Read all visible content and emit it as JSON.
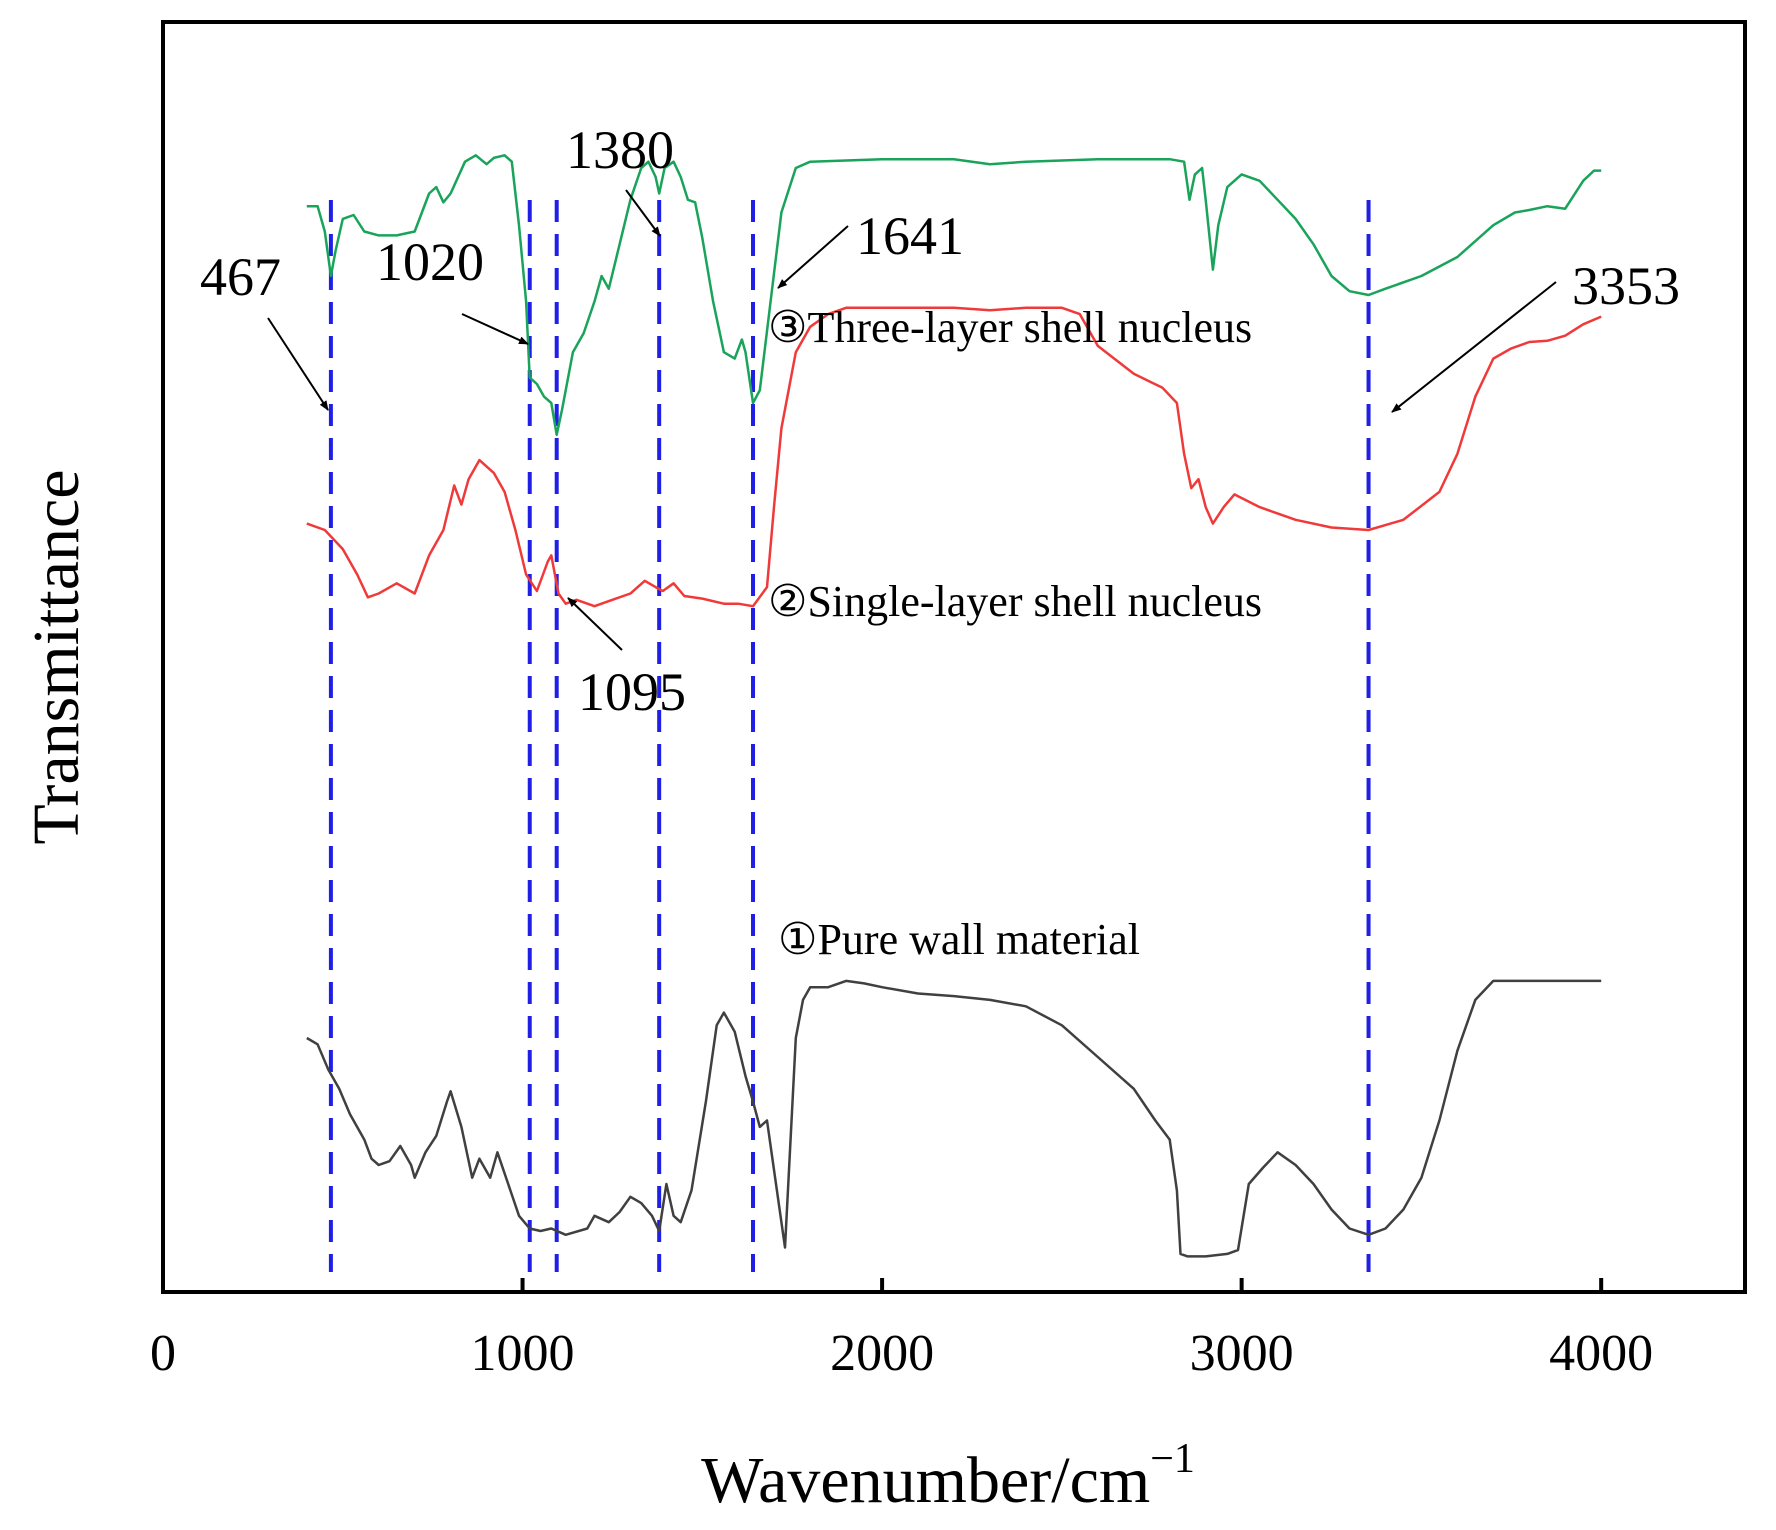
{
  "chart_data": {
    "type": "line",
    "xlabel": "Wavenumber/cm",
    "xlabel_superscript": "−1",
    "ylabel": "Transmittance",
    "xlim": [
      0,
      4400
    ],
    "ylim": [
      0,
      100
    ],
    "x_ticks": [
      0,
      1000,
      2000,
      3000,
      4000
    ],
    "x_tick_labels": [
      "0",
      "1000",
      "2000",
      "3000",
      "4000"
    ],
    "grid": false,
    "y_ticks_shown": false,
    "series": [
      {
        "name": "③Three-layer shell nucleus",
        "color": "#1aa35a",
        "points": [
          [
            400,
            85.5
          ],
          [
            430,
            85.5
          ],
          [
            450,
            83.5
          ],
          [
            467,
            80
          ],
          [
            480,
            82
          ],
          [
            500,
            84.5
          ],
          [
            530,
            84.8
          ],
          [
            560,
            83.5
          ],
          [
            600,
            83.2
          ],
          [
            650,
            83.2
          ],
          [
            700,
            83.5
          ],
          [
            740,
            86.5
          ],
          [
            760,
            87
          ],
          [
            780,
            85.8
          ],
          [
            800,
            86.5
          ],
          [
            840,
            89
          ],
          [
            870,
            89.5
          ],
          [
            900,
            88.8
          ],
          [
            920,
            89.3
          ],
          [
            950,
            89.5
          ],
          [
            970,
            89
          ],
          [
            990,
            84
          ],
          [
            1010,
            78
          ],
          [
            1020,
            72
          ],
          [
            1040,
            71.5
          ],
          [
            1060,
            70.5
          ],
          [
            1080,
            70
          ],
          [
            1095,
            67.5
          ],
          [
            1110,
            69.5
          ],
          [
            1140,
            74
          ],
          [
            1170,
            75.5
          ],
          [
            1200,
            78
          ],
          [
            1220,
            80
          ],
          [
            1240,
            79
          ],
          [
            1270,
            82.5
          ],
          [
            1300,
            86
          ],
          [
            1330,
            88.5
          ],
          [
            1350,
            89
          ],
          [
            1370,
            87.8
          ],
          [
            1380,
            86.5
          ],
          [
            1395,
            88.5
          ],
          [
            1420,
            89
          ],
          [
            1440,
            87.8
          ],
          [
            1460,
            86
          ],
          [
            1480,
            85.8
          ],
          [
            1500,
            83
          ],
          [
            1530,
            78
          ],
          [
            1560,
            74
          ],
          [
            1590,
            73.5
          ],
          [
            1610,
            75
          ],
          [
            1620,
            74
          ],
          [
            1641,
            70
          ],
          [
            1660,
            71
          ],
          [
            1690,
            78
          ],
          [
            1720,
            85
          ],
          [
            1760,
            88.5
          ],
          [
            1800,
            89
          ],
          [
            2000,
            89.2
          ],
          [
            2200,
            89.2
          ],
          [
            2250,
            89
          ],
          [
            2300,
            88.8
          ],
          [
            2400,
            89
          ],
          [
            2600,
            89.2
          ],
          [
            2800,
            89.2
          ],
          [
            2840,
            89
          ],
          [
            2855,
            86
          ],
          [
            2870,
            88
          ],
          [
            2890,
            88.5
          ],
          [
            2900,
            86
          ],
          [
            2920,
            80.5
          ],
          [
            2935,
            84
          ],
          [
            2960,
            87
          ],
          [
            3000,
            88
          ],
          [
            3050,
            87.5
          ],
          [
            3100,
            86
          ],
          [
            3150,
            84.5
          ],
          [
            3200,
            82.5
          ],
          [
            3250,
            80
          ],
          [
            3300,
            78.8
          ],
          [
            3353,
            78.5
          ],
          [
            3400,
            79
          ],
          [
            3500,
            80
          ],
          [
            3600,
            81.5
          ],
          [
            3700,
            84
          ],
          [
            3760,
            85
          ],
          [
            3800,
            85.2
          ],
          [
            3850,
            85.5
          ],
          [
            3900,
            85.3
          ],
          [
            3950,
            87.5
          ],
          [
            3980,
            88.3
          ],
          [
            4000,
            88.3
          ]
        ]
      },
      {
        "name": "②Single-layer shell nucleus",
        "color": "#f03a3a",
        "points": [
          [
            400,
            60.5
          ],
          [
            450,
            60
          ],
          [
            500,
            58.5
          ],
          [
            540,
            56.5
          ],
          [
            570,
            54.7
          ],
          [
            600,
            55
          ],
          [
            650,
            55.8
          ],
          [
            700,
            55
          ],
          [
            740,
            58
          ],
          [
            780,
            60
          ],
          [
            810,
            63.5
          ],
          [
            830,
            62
          ],
          [
            850,
            64
          ],
          [
            880,
            65.5
          ],
          [
            920,
            64.5
          ],
          [
            950,
            63
          ],
          [
            980,
            60
          ],
          [
            1010,
            56.5
          ],
          [
            1040,
            55.2
          ],
          [
            1070,
            57.5
          ],
          [
            1080,
            58
          ],
          [
            1090,
            56.5
          ],
          [
            1100,
            55
          ],
          [
            1120,
            54.2
          ],
          [
            1150,
            54.5
          ],
          [
            1200,
            54
          ],
          [
            1250,
            54.5
          ],
          [
            1300,
            55
          ],
          [
            1340,
            56
          ],
          [
            1370,
            55.5
          ],
          [
            1390,
            55.2
          ],
          [
            1420,
            55.8
          ],
          [
            1450,
            54.8
          ],
          [
            1500,
            54.6
          ],
          [
            1560,
            54.2
          ],
          [
            1600,
            54.2
          ],
          [
            1641,
            54
          ],
          [
            1680,
            55.5
          ],
          [
            1700,
            62
          ],
          [
            1720,
            68
          ],
          [
            1760,
            74
          ],
          [
            1800,
            76
          ],
          [
            1850,
            77
          ],
          [
            1900,
            77.5
          ],
          [
            2000,
            77.5
          ],
          [
            2100,
            77.5
          ],
          [
            2200,
            77.5
          ],
          [
            2300,
            77.3
          ],
          [
            2400,
            77.5
          ],
          [
            2500,
            77.5
          ],
          [
            2550,
            77
          ],
          [
            2600,
            74.5
          ],
          [
            2700,
            72.3
          ],
          [
            2780,
            71.2
          ],
          [
            2820,
            70
          ],
          [
            2840,
            66
          ],
          [
            2860,
            63.3
          ],
          [
            2880,
            64
          ],
          [
            2900,
            61.8
          ],
          [
            2920,
            60.5
          ],
          [
            2950,
            61.8
          ],
          [
            2980,
            62.8
          ],
          [
            3050,
            61.8
          ],
          [
            3150,
            60.8
          ],
          [
            3250,
            60.2
          ],
          [
            3353,
            60
          ],
          [
            3450,
            60.8
          ],
          [
            3550,
            63
          ],
          [
            3600,
            66
          ],
          [
            3650,
            70.5
          ],
          [
            3700,
            73.5
          ],
          [
            3750,
            74.3
          ],
          [
            3800,
            74.8
          ],
          [
            3850,
            74.9
          ],
          [
            3900,
            75.3
          ],
          [
            3950,
            76.2
          ],
          [
            4000,
            76.8
          ]
        ]
      },
      {
        "name": "①Pure wall material",
        "color": "#404040",
        "points": [
          [
            400,
            20
          ],
          [
            430,
            19.5
          ],
          [
            460,
            17.5
          ],
          [
            490,
            16
          ],
          [
            520,
            14
          ],
          [
            560,
            12
          ],
          [
            580,
            10.5
          ],
          [
            600,
            10
          ],
          [
            630,
            10.3
          ],
          [
            660,
            11.5
          ],
          [
            690,
            10
          ],
          [
            700,
            9
          ],
          [
            730,
            11
          ],
          [
            760,
            12.3
          ],
          [
            790,
            15
          ],
          [
            800,
            15.8
          ],
          [
            830,
            13
          ],
          [
            860,
            9
          ],
          [
            880,
            10.5
          ],
          [
            910,
            9
          ],
          [
            930,
            11
          ],
          [
            960,
            8.5
          ],
          [
            990,
            6
          ],
          [
            1020,
            5
          ],
          [
            1050,
            4.8
          ],
          [
            1080,
            5
          ],
          [
            1120,
            4.5
          ],
          [
            1180,
            5
          ],
          [
            1200,
            6
          ],
          [
            1240,
            5.5
          ],
          [
            1270,
            6.3
          ],
          [
            1300,
            7.5
          ],
          [
            1330,
            7
          ],
          [
            1360,
            6
          ],
          [
            1380,
            4.8
          ],
          [
            1400,
            8.5
          ],
          [
            1420,
            6
          ],
          [
            1440,
            5.5
          ],
          [
            1470,
            8
          ],
          [
            1510,
            15
          ],
          [
            1540,
            21
          ],
          [
            1560,
            22
          ],
          [
            1590,
            20.5
          ],
          [
            1620,
            17
          ],
          [
            1641,
            15
          ],
          [
            1660,
            13
          ],
          [
            1680,
            13.5
          ],
          [
            1700,
            9.5
          ],
          [
            1730,
            3.5
          ],
          [
            1760,
            20
          ],
          [
            1780,
            23
          ],
          [
            1800,
            24
          ],
          [
            1850,
            24
          ],
          [
            1900,
            24.5
          ],
          [
            1950,
            24.3
          ],
          [
            2000,
            24
          ],
          [
            2100,
            23.5
          ],
          [
            2200,
            23.3
          ],
          [
            2300,
            23
          ],
          [
            2400,
            22.5
          ],
          [
            2500,
            21
          ],
          [
            2600,
            18.5
          ],
          [
            2700,
            16
          ],
          [
            2760,
            13.5
          ],
          [
            2800,
            12
          ],
          [
            2820,
            8
          ],
          [
            2830,
            3
          ],
          [
            2850,
            2.8
          ],
          [
            2900,
            2.8
          ],
          [
            2960,
            3
          ],
          [
            2990,
            3.3
          ],
          [
            3020,
            8.5
          ],
          [
            3060,
            9.8
          ],
          [
            3100,
            11
          ],
          [
            3150,
            10
          ],
          [
            3200,
            8.5
          ],
          [
            3250,
            6.5
          ],
          [
            3300,
            5
          ],
          [
            3353,
            4.5
          ],
          [
            3400,
            5
          ],
          [
            3450,
            6.5
          ],
          [
            3500,
            9
          ],
          [
            3550,
            13.5
          ],
          [
            3600,
            19
          ],
          [
            3650,
            23
          ],
          [
            3700,
            24.5
          ],
          [
            3800,
            24.5
          ],
          [
            3900,
            24.5
          ],
          [
            4000,
            24.5
          ]
        ]
      }
    ],
    "reference_lines": [
      467,
      1020,
      1095,
      1380,
      1641,
      3353
    ],
    "reference_line_color": "#1f1fe6",
    "annotations": [
      {
        "text": "467",
        "target_x": 467
      },
      {
        "text": "1020",
        "target_x": 1020
      },
      {
        "text": "1095",
        "target_x": 1095
      },
      {
        "text": "1380",
        "target_x": 1380
      },
      {
        "text": "1641",
        "target_x": 1641
      },
      {
        "text": "3353",
        "target_x": 3353
      }
    ]
  }
}
